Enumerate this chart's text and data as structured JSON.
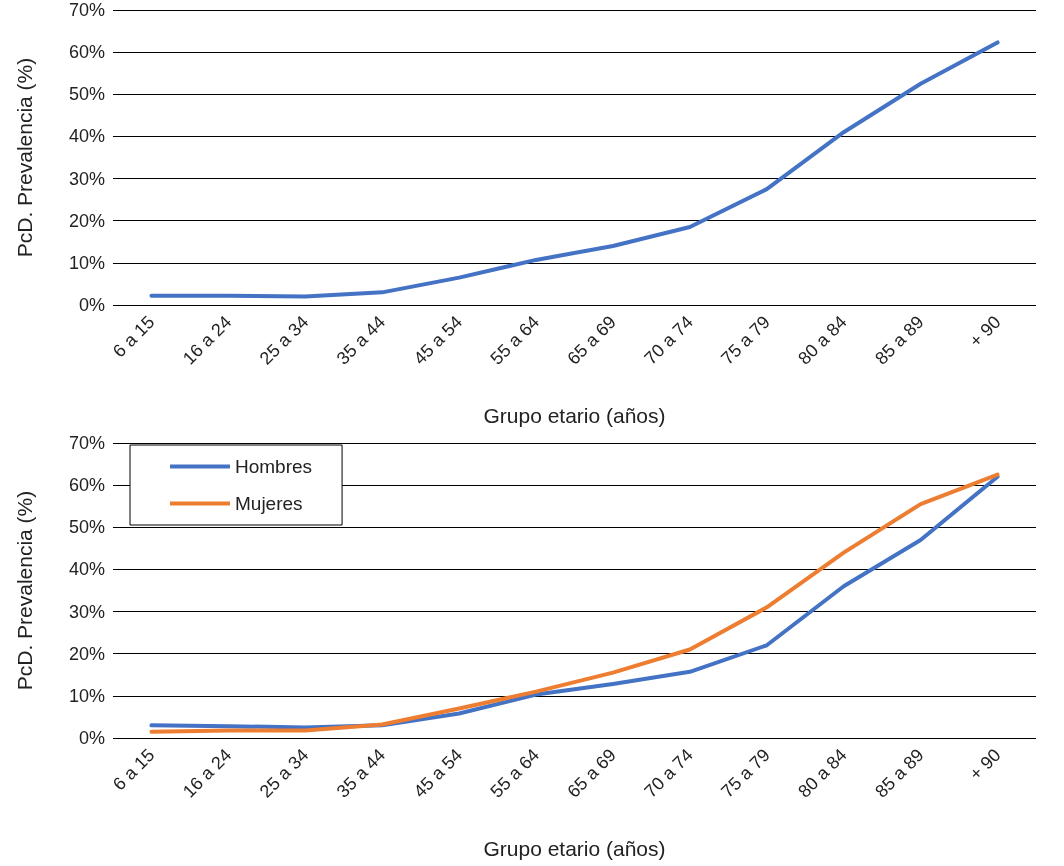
{
  "chart_data": [
    {
      "type": "line",
      "xlabel": "Grupo etario (años)",
      "ylabel": "PcD. Prevalencia (%)",
      "categories": [
        "6 a 15",
        "16 a 24",
        "25 a 34",
        "35 a 44",
        "45 a 54",
        "55 a 64",
        "65 a 69",
        "70 a 74",
        "75 a 79",
        "80 a 84",
        "85 a 89",
        "+ 90"
      ],
      "series": [
        {
          "color": "#4472c4",
          "values": [
            2.2,
            2.2,
            2.0,
            3.0,
            6.5,
            10.7,
            14.0,
            18.5,
            27.5,
            41.0,
            52.5,
            62.3
          ]
        }
      ],
      "ylim": [
        0,
        70
      ],
      "yticks": [
        {
          "value": 0,
          "label": "0%"
        },
        {
          "value": 10,
          "label": "10%"
        },
        {
          "value": 20,
          "label": "20%"
        },
        {
          "value": 30,
          "label": "30%"
        },
        {
          "value": 40,
          "label": "40%"
        },
        {
          "value": 50,
          "label": "50%"
        },
        {
          "value": 60,
          "label": "60%"
        },
        {
          "value": 70,
          "label": "70%"
        }
      ],
      "grid": "y",
      "legend": false,
      "marker": "none",
      "line_style": "solid"
    },
    {
      "type": "line",
      "xlabel": "Grupo etario (años)",
      "ylabel": "PcD. Prevalencia (%)",
      "categories": [
        "6 a 15",
        "16 a 24",
        "25 a 34",
        "35 a 44",
        "45 a 54",
        "55 a 64",
        "65 a 69",
        "70 a 74",
        "75 a 79",
        "80 a 84",
        "85 a 89",
        "+ 90"
      ],
      "series": [
        {
          "name": "Hombres",
          "color": "#4472c4",
          "values": [
            3.0,
            2.8,
            2.5,
            3.0,
            5.8,
            10.3,
            12.8,
            15.7,
            22.0,
            36.0,
            47.0,
            62.0
          ]
        },
        {
          "name": "Mujeres",
          "color": "#ed7d31",
          "values": [
            1.5,
            1.8,
            1.8,
            3.2,
            7.0,
            11.0,
            15.5,
            21.0,
            31.0,
            44.0,
            55.5,
            62.5
          ]
        }
      ],
      "ylim": [
        0,
        70
      ],
      "yticks": [
        {
          "value": 0,
          "label": "0%"
        },
        {
          "value": 10,
          "label": "10%"
        },
        {
          "value": 20,
          "label": "20%"
        },
        {
          "value": 30,
          "label": "30%"
        },
        {
          "value": 40,
          "label": "40%"
        },
        {
          "value": 50,
          "label": "50%"
        },
        {
          "value": 60,
          "label": "60%"
        },
        {
          "value": 70,
          "label": "70%"
        }
      ],
      "grid": "y",
      "legend": "top left",
      "marker": "none",
      "line_style": "solid"
    }
  ]
}
